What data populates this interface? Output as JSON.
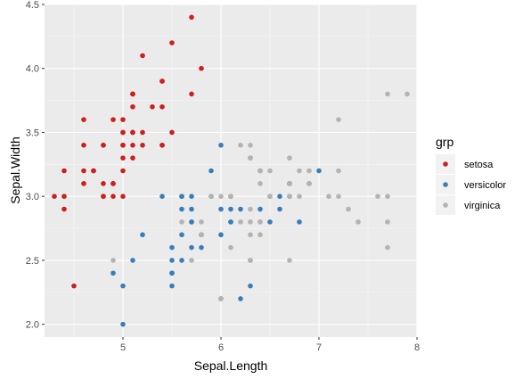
{
  "chart_data": {
    "type": "scatter",
    "title": "",
    "xlabel": "Sepal.Length",
    "ylabel": "Sepal.Width",
    "xlim": [
      4.2,
      8.0
    ],
    "ylim": [
      1.9,
      4.5
    ],
    "x_ticks": [
      5,
      6,
      7,
      8
    ],
    "y_ticks": [
      2.0,
      2.5,
      3.0,
      3.5,
      4.0,
      4.5
    ],
    "x_tick_labels": [
      "5",
      "6",
      "7",
      "8"
    ],
    "y_tick_labels": [
      "2.0",
      "2.5",
      "3.0",
      "3.5",
      "4.0",
      "4.5"
    ],
    "grid": true,
    "panel_background": "#ebebeb",
    "legend": {
      "title": "grp",
      "position": "right"
    },
    "series": [
      {
        "name": "setosa",
        "color": "#cc1f1f",
        "points": [
          [
            5.1,
            3.5
          ],
          [
            4.9,
            3.0
          ],
          [
            4.7,
            3.2
          ],
          [
            4.6,
            3.1
          ],
          [
            5.0,
            3.6
          ],
          [
            5.4,
            3.9
          ],
          [
            4.6,
            3.4
          ],
          [
            5.0,
            3.4
          ],
          [
            4.4,
            2.9
          ],
          [
            4.9,
            3.1
          ],
          [
            5.4,
            3.7
          ],
          [
            4.8,
            3.4
          ],
          [
            4.8,
            3.0
          ],
          [
            4.3,
            3.0
          ],
          [
            5.8,
            4.0
          ],
          [
            5.7,
            4.4
          ],
          [
            5.4,
            3.9
          ],
          [
            5.1,
            3.5
          ],
          [
            5.7,
            3.8
          ],
          [
            5.1,
            3.8
          ],
          [
            5.4,
            3.4
          ],
          [
            5.1,
            3.7
          ],
          [
            4.6,
            3.6
          ],
          [
            5.1,
            3.3
          ],
          [
            4.8,
            3.4
          ],
          [
            5.0,
            3.0
          ],
          [
            5.0,
            3.4
          ],
          [
            5.2,
            3.5
          ],
          [
            5.2,
            3.4
          ],
          [
            4.7,
            3.2
          ],
          [
            4.8,
            3.1
          ],
          [
            5.4,
            3.4
          ],
          [
            5.2,
            4.1
          ],
          [
            5.5,
            4.2
          ],
          [
            4.9,
            3.1
          ],
          [
            5.0,
            3.2
          ],
          [
            5.5,
            3.5
          ],
          [
            4.9,
            3.6
          ],
          [
            4.4,
            3.0
          ],
          [
            5.1,
            3.4
          ],
          [
            5.0,
            3.5
          ],
          [
            4.5,
            2.3
          ],
          [
            4.4,
            3.2
          ],
          [
            5.0,
            3.5
          ],
          [
            5.1,
            3.8
          ],
          [
            4.8,
            3.0
          ],
          [
            5.1,
            3.8
          ],
          [
            4.6,
            3.2
          ],
          [
            5.3,
            3.7
          ],
          [
            5.0,
            3.3
          ]
        ]
      },
      {
        "name": "versicolor",
        "color": "#377eb8",
        "points": [
          [
            7.0,
            3.2
          ],
          [
            6.4,
            3.2
          ],
          [
            6.9,
            3.1
          ],
          [
            5.5,
            2.3
          ],
          [
            6.5,
            2.8
          ],
          [
            5.7,
            2.8
          ],
          [
            6.3,
            3.3
          ],
          [
            4.9,
            2.4
          ],
          [
            6.6,
            2.9
          ],
          [
            5.2,
            2.7
          ],
          [
            5.0,
            2.0
          ],
          [
            5.9,
            3.0
          ],
          [
            6.0,
            2.2
          ],
          [
            6.1,
            2.9
          ],
          [
            5.6,
            2.9
          ],
          [
            6.7,
            3.1
          ],
          [
            5.6,
            3.0
          ],
          [
            5.8,
            2.7
          ],
          [
            6.2,
            2.2
          ],
          [
            5.6,
            2.5
          ],
          [
            5.9,
            3.2
          ],
          [
            6.1,
            2.8
          ],
          [
            6.3,
            2.5
          ],
          [
            6.1,
            2.8
          ],
          [
            6.4,
            2.9
          ],
          [
            6.6,
            3.0
          ],
          [
            6.8,
            2.8
          ],
          [
            6.7,
            3.0
          ],
          [
            6.0,
            2.9
          ],
          [
            5.7,
            2.6
          ],
          [
            5.5,
            2.4
          ],
          [
            5.5,
            2.4
          ],
          [
            5.8,
            2.7
          ],
          [
            6.0,
            2.7
          ],
          [
            5.4,
            3.0
          ],
          [
            6.0,
            3.4
          ],
          [
            6.7,
            3.1
          ],
          [
            6.3,
            2.3
          ],
          [
            5.6,
            3.0
          ],
          [
            5.5,
            2.5
          ],
          [
            5.5,
            2.6
          ],
          [
            6.1,
            3.0
          ],
          [
            5.8,
            2.6
          ],
          [
            5.0,
            2.3
          ],
          [
            5.6,
            2.7
          ],
          [
            5.7,
            3.0
          ],
          [
            5.7,
            2.9
          ],
          [
            6.2,
            2.9
          ],
          [
            5.1,
            2.5
          ],
          [
            5.7,
            2.8
          ]
        ]
      },
      {
        "name": "virginica",
        "color": "#b3b3b3",
        "points": [
          [
            6.3,
            3.3
          ],
          [
            5.8,
            2.7
          ],
          [
            7.1,
            3.0
          ],
          [
            6.3,
            2.9
          ],
          [
            6.5,
            3.0
          ],
          [
            7.6,
            3.0
          ],
          [
            4.9,
            2.5
          ],
          [
            7.3,
            2.9
          ],
          [
            6.7,
            2.5
          ],
          [
            7.2,
            3.6
          ],
          [
            6.5,
            3.2
          ],
          [
            6.4,
            2.7
          ],
          [
            6.8,
            3.0
          ],
          [
            5.7,
            2.5
          ],
          [
            5.8,
            2.8
          ],
          [
            6.4,
            3.2
          ],
          [
            6.5,
            3.0
          ],
          [
            7.7,
            3.8
          ],
          [
            7.7,
            2.6
          ],
          [
            6.0,
            2.2
          ],
          [
            6.9,
            3.2
          ],
          [
            5.6,
            2.8
          ],
          [
            7.7,
            2.8
          ],
          [
            6.3,
            2.7
          ],
          [
            6.7,
            3.3
          ],
          [
            7.2,
            3.2
          ],
          [
            6.2,
            2.8
          ],
          [
            6.1,
            3.0
          ],
          [
            6.4,
            2.8
          ],
          [
            7.2,
            3.0
          ],
          [
            7.4,
            2.8
          ],
          [
            7.9,
            3.8
          ],
          [
            6.4,
            2.8
          ],
          [
            6.3,
            2.8
          ],
          [
            6.1,
            2.6
          ],
          [
            7.7,
            3.0
          ],
          [
            6.3,
            3.4
          ],
          [
            6.4,
            3.1
          ],
          [
            6.0,
            3.0
          ],
          [
            6.9,
            3.1
          ],
          [
            6.7,
            3.1
          ],
          [
            6.9,
            3.1
          ],
          [
            5.8,
            2.7
          ],
          [
            6.8,
            3.2
          ],
          [
            6.7,
            3.3
          ],
          [
            6.7,
            3.0
          ],
          [
            6.3,
            2.5
          ],
          [
            6.5,
            3.0
          ],
          [
            6.2,
            3.4
          ],
          [
            5.9,
            3.0
          ]
        ]
      }
    ]
  }
}
